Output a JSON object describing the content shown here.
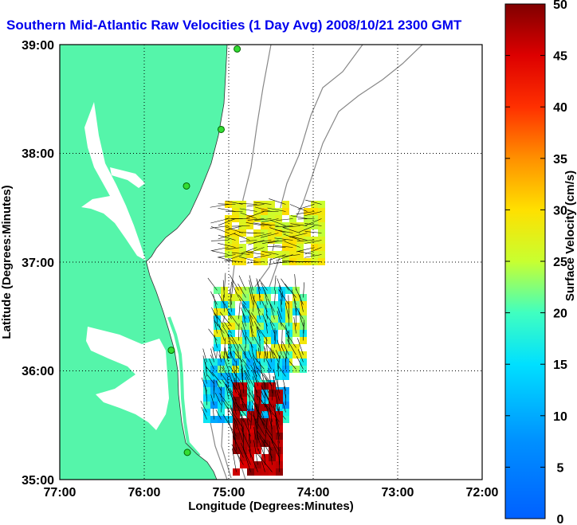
{
  "title": "Southern Mid-Atlantic Raw Velocities (1 Day Avg) 2008/10/21 2300 GMT",
  "map": {
    "x_label": "Longitude (Degrees:Minutes)",
    "y_label": "Latitude (Degrees:Minutes)",
    "x_ticks": [
      "77:00",
      "76:00",
      "75:00",
      "74:00",
      "73:00",
      "72:00"
    ],
    "y_ticks": [
      "39:00",
      "38:00",
      "37:00",
      "36:00",
      "35:00"
    ],
    "lon_range": [
      -77,
      -72
    ],
    "lat_range": [
      35,
      39
    ],
    "land_color": "#55f5aa",
    "grid": true
  },
  "colorbar": {
    "label": "Surface Velocity (cm/s)",
    "ticks": [
      "50",
      "45",
      "40",
      "35",
      "30",
      "25",
      "20",
      "15",
      "10",
      "5",
      "0"
    ],
    "range": [
      0,
      50
    ],
    "colormap": "jet"
  },
  "stations": [
    {
      "lon": -74.9,
      "lat": 38.96
    },
    {
      "lon": -75.09,
      "lat": 38.22
    },
    {
      "lon": -75.5,
      "lat": 37.7
    },
    {
      "lon": -75.68,
      "lat": 36.19
    },
    {
      "lon": -75.49,
      "lat": 35.25
    }
  ]
}
